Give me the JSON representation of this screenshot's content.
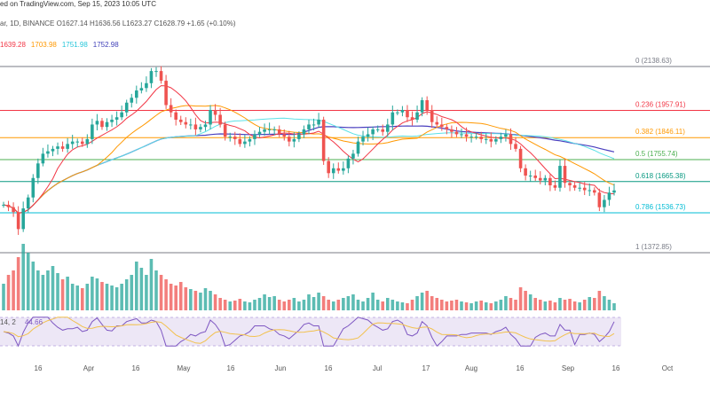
{
  "header": {
    "line1": "ed on TradingView.com, Sep 15, 2023 10:05 UTC",
    "line2": "ar, 1D, BINANCE  O1627.14  H1636.56  L1623.27  C1628.79  +1.65 (+0.10%)",
    "ma_values": [
      {
        "text": "1639.28",
        "color": "#f23645"
      },
      {
        "text": "1703.98",
        "color": "#ff9800"
      },
      {
        "text": "1751.98",
        "color": "#26c6da"
      },
      {
        "text": "1752.98",
        "color": "#3f3fb8"
      }
    ]
  },
  "colors": {
    "up": "#26a69a",
    "down": "#ef5350",
    "ma_fast": "#f23645",
    "ma_mid": "#ff9800",
    "ma_slow": "#5ce1e6",
    "ma_long": "#4a3fbf",
    "rsi": "#7e57c2",
    "rsi_sig": "#f2c14e",
    "rsi_bg": "#ede7f6"
  },
  "chart_data": {
    "type": "candlestick",
    "title": "",
    "price_range": [
      1300,
      2250
    ],
    "fib_levels": [
      {
        "ratio": "0",
        "value": 2138.63,
        "label": "0 (2138.63)",
        "color": "#787b86"
      },
      {
        "ratio": "0.236",
        "value": 1957.91,
        "label": "0.236 (1957.91)",
        "color": "#f23645"
      },
      {
        "ratio": "0.382",
        "value": 1846.11,
        "label": "0.382 (1846.11)",
        "color": "#ff9800"
      },
      {
        "ratio": "0.5",
        "value": 1755.74,
        "label": "0.5 (1755.74)",
        "color": "#4caf50"
      },
      {
        "ratio": "0.618",
        "value": 1665.38,
        "label": "0.618 (1665.38)",
        "color": "#089981"
      },
      {
        "ratio": "0.786",
        "value": 1536.73,
        "label": "0.786 (1536.73)",
        "color": "#00bcd4"
      },
      {
        "ratio": "1",
        "value": 1372.85,
        "label": "1 (1372.85)",
        "color": "#787b86"
      }
    ],
    "x_ticks": [
      "16",
      "Apr",
      "16",
      "May",
      "16",
      "Jun",
      "16",
      "Jul",
      "17",
      "Aug",
      "16",
      "Sep",
      "16",
      "Oct"
    ],
    "price_series": [
      1570,
      1560,
      1540,
      1470,
      1555,
      1600,
      1680,
      1740,
      1780,
      1790,
      1800,
      1810,
      1800,
      1820,
      1830,
      1830,
      1820,
      1840,
      1900,
      1915,
      1890,
      1910,
      1920,
      1930,
      1950,
      1990,
      2010,
      2040,
      2050,
      2070,
      2120,
      2120,
      2080,
      1980,
      1950,
      1920,
      1910,
      1900,
      1900,
      1880,
      1890,
      1900,
      1960,
      1940,
      1900,
      1850,
      1850,
      1840,
      1820,
      1830,
      1840,
      1860,
      1870,
      1880,
      1880,
      1880,
      1860,
      1850,
      1830,
      1840,
      1860,
      1880,
      1900,
      1900,
      1920,
      1750,
      1700,
      1720,
      1710,
      1720,
      1760,
      1780,
      1830,
      1850,
      1860,
      1880,
      1880,
      1870,
      1900,
      1950,
      1950,
      1960,
      1930,
      1920,
      1950,
      2000,
      1960,
      1910,
      1900,
      1890,
      1880,
      1870,
      1860,
      1860,
      1850,
      1850,
      1850,
      1840,
      1840,
      1830,
      1840,
      1850,
      1860,
      1820,
      1800,
      1720,
      1690,
      1690,
      1680,
      1670,
      1680,
      1650,
      1640,
      1730,
      1660,
      1650,
      1640,
      1640,
      1630,
      1630,
      1620,
      1560,
      1590,
      1620,
      1629
    ],
    "volume_series": [
      30,
      40,
      45,
      60,
      75,
      65,
      55,
      45,
      40,
      45,
      50,
      42,
      35,
      38,
      30,
      28,
      25,
      30,
      38,
      36,
      32,
      30,
      28,
      26,
      30,
      35,
      40,
      55,
      48,
      40,
      58,
      45,
      40,
      35,
      30,
      28,
      32,
      26,
      24,
      22,
      20,
      25,
      22,
      18,
      14,
      12,
      10,
      11,
      13,
      10,
      9,
      12,
      14,
      18,
      15,
      16,
      12,
      10,
      12,
      14,
      10,
      12,
      18,
      15,
      20,
      16,
      12,
      10,
      12,
      14,
      16,
      18,
      12,
      10,
      14,
      20,
      12,
      10,
      14,
      12,
      10,
      9,
      8,
      12,
      16,
      20,
      22,
      16,
      14,
      12,
      10,
      11,
      12,
      10,
      9,
      8,
      10,
      11,
      9,
      8,
      10,
      12,
      16,
      14,
      12,
      26,
      22,
      18,
      14,
      12,
      10,
      11,
      9,
      14,
      12,
      13,
      10,
      9,
      12,
      15,
      14,
      22,
      16,
      12,
      8
    ],
    "rsi": {
      "label": "14, 2",
      "value": "44.66",
      "range": [
        0,
        100
      ]
    }
  }
}
